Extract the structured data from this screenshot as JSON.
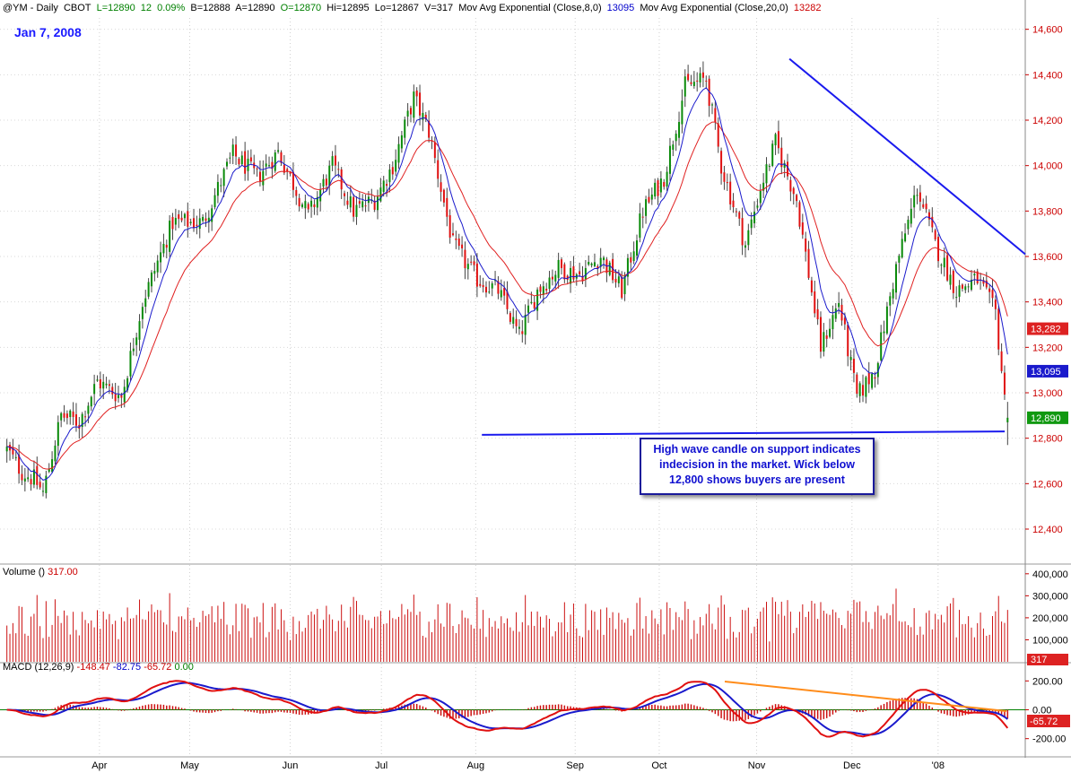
{
  "header": {
    "symbol": "@YM - Daily",
    "exchange": "CBOT",
    "last": "L=12890",
    "change": "12",
    "change_pct": "0.09%",
    "bid": "B=12888",
    "ask": "A=12890",
    "open": "O=12870",
    "high": "Hi=12895",
    "low": "Lo=12867",
    "volume": "V=317",
    "ma8_label": "Mov Avg Exponential (Close,8,0)",
    "ma8_value": "13095",
    "ma20_label": "Mov Avg Exponential (Close,20,0)",
    "ma20_value": "13282"
  },
  "date_label": "Jan 7, 2008",
  "annotation": "High wave candle on support indicates indecision in the market. Wick below 12,800 shows buyers are present",
  "volume_header": {
    "label": "Volume ()",
    "value": "317.00"
  },
  "macd_header": {
    "label": "MACD (12,26,9)",
    "macd": "-148.47",
    "signal": "-82.75",
    "hist": "-65.72",
    "zero": "0.00"
  },
  "chart_data": {
    "type": "candlestick",
    "x_ticks": [
      "Apr",
      "May",
      "Jun",
      "Jul",
      "Aug",
      "Sep",
      "Oct",
      "Nov",
      "Dec",
      "'08"
    ],
    "price_axis": {
      "ticks": [
        "14,600",
        "14,400",
        "14,200",
        "14,000",
        "13,800",
        "13,600",
        "13,400",
        "13,200",
        "13,000",
        "12,800",
        "12,600",
        "12,400"
      ],
      "ylim": [
        12250,
        14650
      ],
      "badges": [
        {
          "value": 13282,
          "label": "13,282",
          "color": "#dd2222"
        },
        {
          "value": 13095,
          "label": "13,095",
          "color": "#1a1acc"
        },
        {
          "value": 12890,
          "label": "12,890",
          "color": "#119911"
        }
      ]
    },
    "volume_axis": {
      "ticks": [
        "400,000",
        "300,000",
        "200,000",
        "100,000"
      ],
      "ylim": [
        0,
        440000
      ],
      "badge": "317"
    },
    "macd_axis": {
      "ticks": [
        "200.00",
        "0.00",
        "-200.00"
      ],
      "ylim": [
        -320,
        320
      ],
      "badge": "-65.72"
    },
    "waypoints": [
      [
        0,
        12750
      ],
      [
        5,
        12650
      ],
      [
        9,
        12620
      ],
      [
        12,
        12560
      ],
      [
        18,
        12900
      ],
      [
        24,
        12870
      ],
      [
        30,
        13050
      ],
      [
        38,
        12980
      ],
      [
        45,
        13400
      ],
      [
        55,
        13750
      ],
      [
        65,
        13750
      ],
      [
        75,
        14050
      ],
      [
        83,
        13950
      ],
      [
        90,
        14060
      ],
      [
        100,
        13780
      ],
      [
        108,
        14000
      ],
      [
        115,
        13800
      ],
      [
        122,
        13850
      ],
      [
        128,
        14000
      ],
      [
        135,
        14300
      ],
      [
        140,
        14150
      ],
      [
        148,
        13650
      ],
      [
        156,
        13500
      ],
      [
        163,
        13450
      ],
      [
        170,
        13250
      ],
      [
        176,
        13450
      ],
      [
        183,
        13550
      ],
      [
        190,
        13520
      ],
      [
        197,
        13600
      ],
      [
        204,
        13450
      ],
      [
        211,
        13800
      ],
      [
        218,
        13950
      ],
      [
        225,
        14350
      ],
      [
        232,
        14380
      ],
      [
        237,
        14000
      ],
      [
        245,
        13650
      ],
      [
        250,
        13900
      ],
      [
        255,
        14100
      ],
      [
        262,
        13850
      ],
      [
        270,
        13200
      ],
      [
        276,
        13400
      ],
      [
        282,
        12980
      ],
      [
        288,
        13100
      ],
      [
        295,
        13550
      ],
      [
        302,
        13900
      ],
      [
        308,
        13650
      ],
      [
        315,
        13450
      ],
      [
        322,
        13500
      ],
      [
        328,
        13350
      ],
      [
        332,
        12850
      ]
    ],
    "trendlines": [
      {
        "name": "resistance",
        "from": [
          0.77,
          14470
        ],
        "to": [
          1.0,
          13610
        ]
      },
      {
        "name": "support",
        "from": [
          0.47,
          12815
        ],
        "to": [
          0.98,
          12830
        ]
      }
    ]
  },
  "colors": {
    "up": "#0a8a0a",
    "down": "#e01010",
    "ma8": "#1a1acc",
    "ma20": "#e02020",
    "divergence": "#ff8c1a"
  }
}
